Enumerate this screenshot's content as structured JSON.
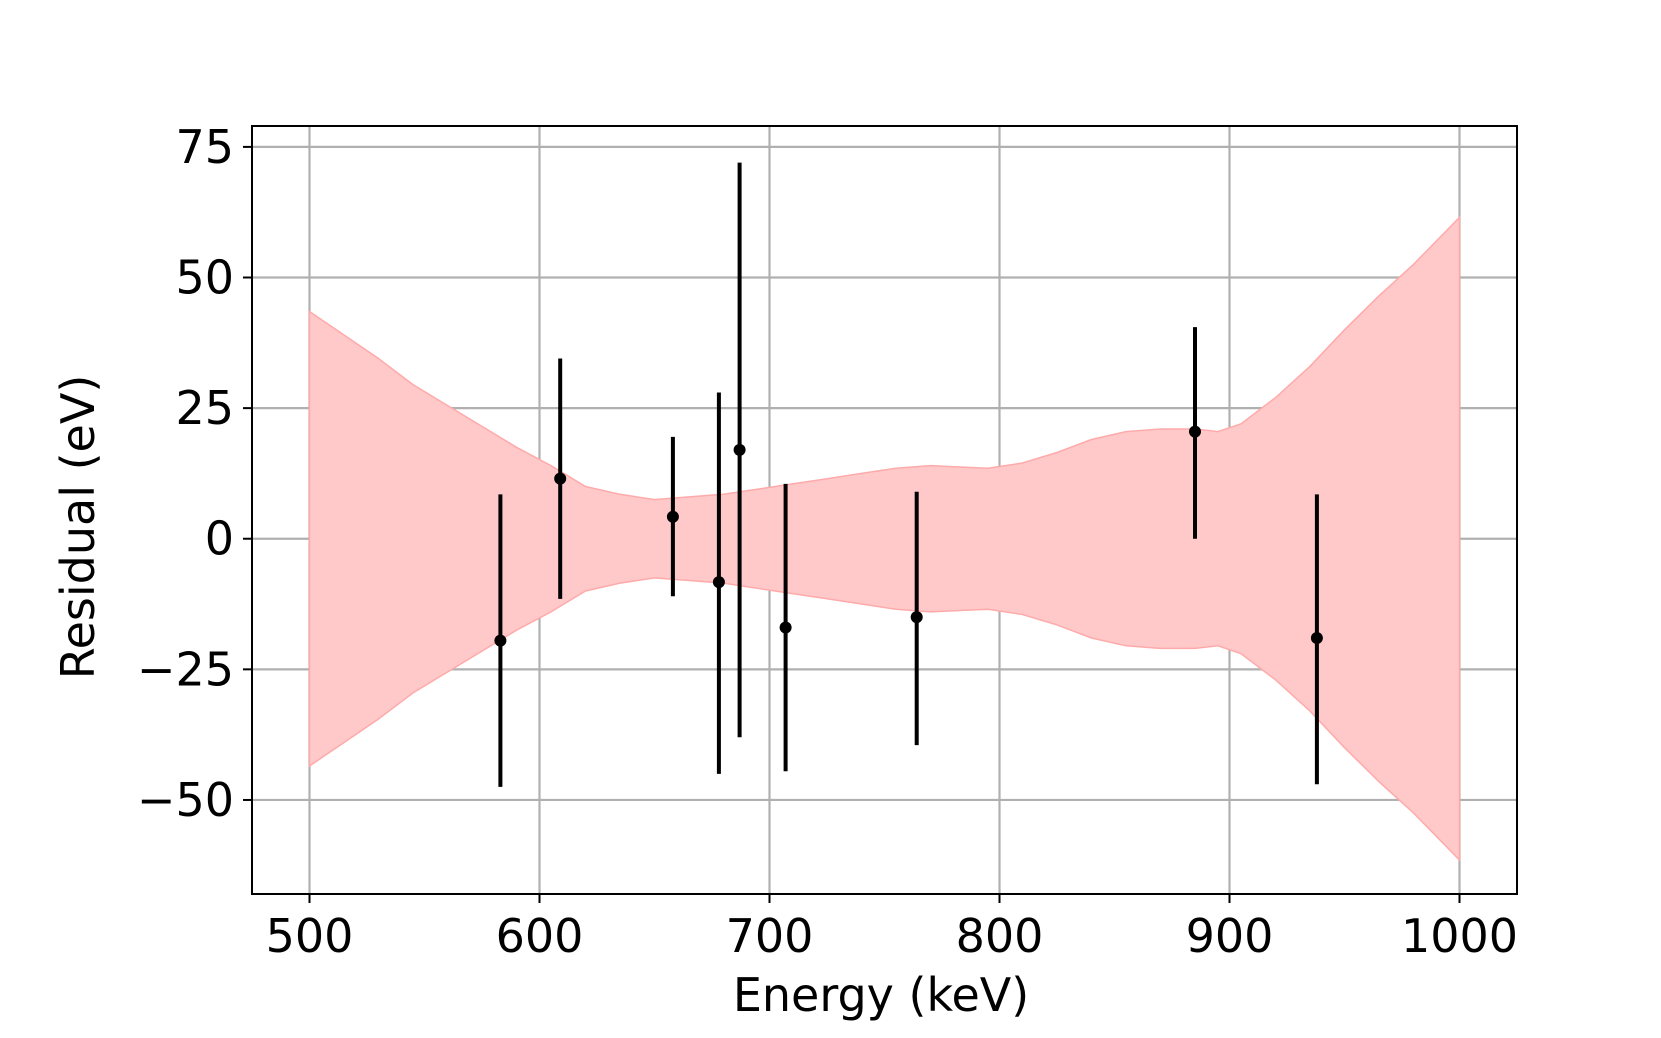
{
  "chart_data": {
    "type": "scatter",
    "title": "",
    "xlabel": "Energy (keV)",
    "ylabel": "Residual (eV)",
    "xlim": [
      475,
      1025
    ],
    "ylim": [
      -68,
      79
    ],
    "x_ticks": [
      500,
      600,
      700,
      800,
      900,
      1000
    ],
    "x_tick_labels": [
      "500",
      "600",
      "700",
      "800",
      "900",
      "1000"
    ],
    "y_ticks": [
      75,
      50,
      25,
      0,
      -25,
      -50
    ],
    "y_tick_labels": [
      "75",
      "50",
      "25",
      "0",
      "−25",
      "−50"
    ],
    "grid": true,
    "colors": {
      "band": "#ffc9c9",
      "band_edge": "#ffaaaa",
      "points": "#000000",
      "grid": "#b0b0b0"
    },
    "points": [
      {
        "x": 583,
        "y": -19.5,
        "y_low": -47.5,
        "y_high": 8.5
      },
      {
        "x": 609,
        "y": 11.5,
        "y_low": -11.5,
        "y_high": 34.5
      },
      {
        "x": 658,
        "y": 4.2,
        "y_low": -11.0,
        "y_high": 19.5
      },
      {
        "x": 678,
        "y": -8.3,
        "y_low": -45.0,
        "y_high": 28.0
      },
      {
        "x": 687,
        "y": 17.0,
        "y_low": -38.0,
        "y_high": 72.0
      },
      {
        "x": 707,
        "y": -17.0,
        "y_low": -44.5,
        "y_high": 10.5
      },
      {
        "x": 764,
        "y": -15.0,
        "y_low": -39.5,
        "y_high": 9.0
      },
      {
        "x": 885,
        "y": 20.5,
        "y_low": 0.0,
        "y_high": 40.5
      },
      {
        "x": 938,
        "y": -19.0,
        "y_low": -47.0,
        "y_high": 8.5
      }
    ],
    "band": {
      "x": [
        500,
        515,
        530,
        545,
        560,
        575,
        590,
        605,
        620,
        635,
        650,
        665,
        680,
        695,
        710,
        725,
        740,
        755,
        770,
        785,
        795,
        810,
        825,
        840,
        855,
        870,
        885,
        895,
        905,
        920,
        935,
        950,
        965,
        980,
        990,
        1000
      ],
      "upper": [
        43.5,
        39.0,
        34.5,
        29.5,
        25.5,
        21.5,
        17.5,
        14.0,
        10.0,
        8.5,
        7.5,
        8.0,
        8.5,
        9.5,
        10.5,
        11.5,
        12.5,
        13.5,
        14.0,
        13.7,
        13.5,
        14.5,
        16.5,
        19.0,
        20.5,
        21.0,
        21.0,
        20.5,
        22.0,
        27.0,
        33.0,
        40.0,
        46.5,
        52.5,
        57.0,
        61.5
      ],
      "lower": [
        -43.5,
        -39.0,
        -34.5,
        -29.5,
        -25.5,
        -21.5,
        -17.5,
        -14.0,
        -10.0,
        -8.5,
        -7.5,
        -8.0,
        -8.5,
        -9.5,
        -10.5,
        -11.5,
        -12.5,
        -13.5,
        -14.0,
        -13.7,
        -13.5,
        -14.5,
        -16.5,
        -19.0,
        -20.5,
        -21.0,
        -21.0,
        -20.5,
        -22.0,
        -27.0,
        -33.0,
        -40.0,
        -46.5,
        -52.5,
        -57.0,
        -61.5
      ]
    }
  }
}
